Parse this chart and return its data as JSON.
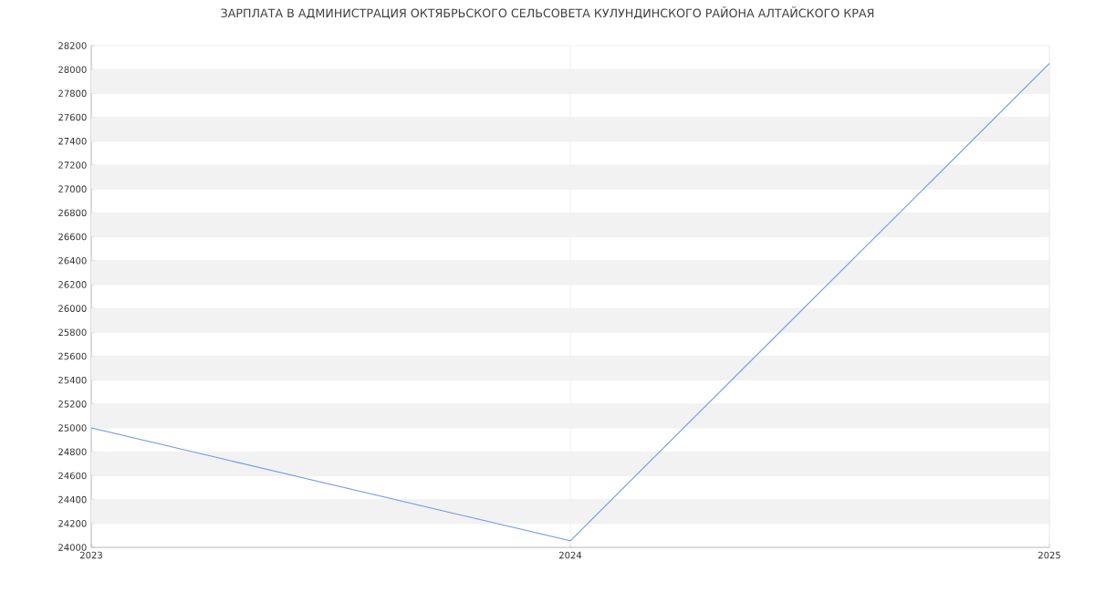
{
  "chart_data": {
    "type": "line",
    "title": "ЗАРПЛАТА В АДМИНИСТРАЦИЯ ОКТЯБРЬСКОГО СЕЛЬСОВЕТА КУЛУНДИНСКОГО РАЙОНА АЛТАЙСКОГО КРАЯ",
    "x": [
      2023,
      2024,
      2025
    ],
    "series": [
      {
        "color": "#6b93f0",
        "values": [
          25000,
          24055,
          28050
        ]
      }
    ],
    "xlim": [
      2023,
      2025
    ],
    "xticks": [
      2023,
      2024,
      2025
    ],
    "ylim": [
      24000,
      28200
    ],
    "yticks": [
      24000,
      24200,
      24400,
      24600,
      24800,
      25000,
      25200,
      25400,
      25600,
      25800,
      26000,
      26200,
      26400,
      26600,
      26800,
      27000,
      27200,
      27400,
      27600,
      27800,
      28000,
      28200
    ],
    "grid": true,
    "marker": "none",
    "line_style": "solid"
  }
}
